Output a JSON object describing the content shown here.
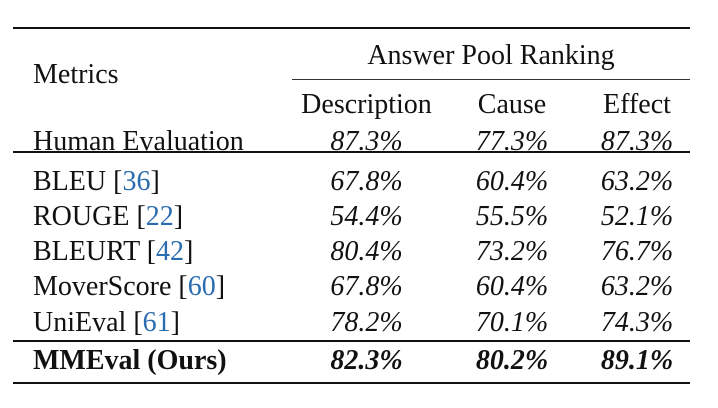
{
  "table": {
    "header": {
      "metrics": "Metrics",
      "group": "Answer Pool Ranking",
      "columns": [
        "Description",
        "Cause",
        "Effect"
      ]
    },
    "rows": [
      {
        "name": "Human Evaluation",
        "cite": "",
        "values": [
          "87.3%",
          "77.3%",
          "87.3%"
        ]
      },
      {
        "name": "BLEU",
        "cite": "36",
        "values": [
          "67.8%",
          "60.4%",
          "63.2%"
        ]
      },
      {
        "name": "ROUGE",
        "cite": "22",
        "values": [
          "54.4%",
          "55.5%",
          "52.1%"
        ]
      },
      {
        "name": "BLEURT",
        "cite": "42",
        "values": [
          "80.4%",
          "73.2%",
          "76.7%"
        ]
      },
      {
        "name": "MoverScore",
        "cite": "60",
        "values": [
          "67.8%",
          "60.4%",
          "63.2%"
        ]
      },
      {
        "name": "UniEval",
        "cite": "61",
        "values": [
          "78.2%",
          "70.1%",
          "74.3%"
        ]
      },
      {
        "name": "MMEval (Ours)",
        "cite": "",
        "values": [
          "82.3%",
          "80.2%",
          "89.1%"
        ]
      }
    ]
  },
  "colors": {
    "citation": "#2b6cb0",
    "text": "#111111"
  }
}
